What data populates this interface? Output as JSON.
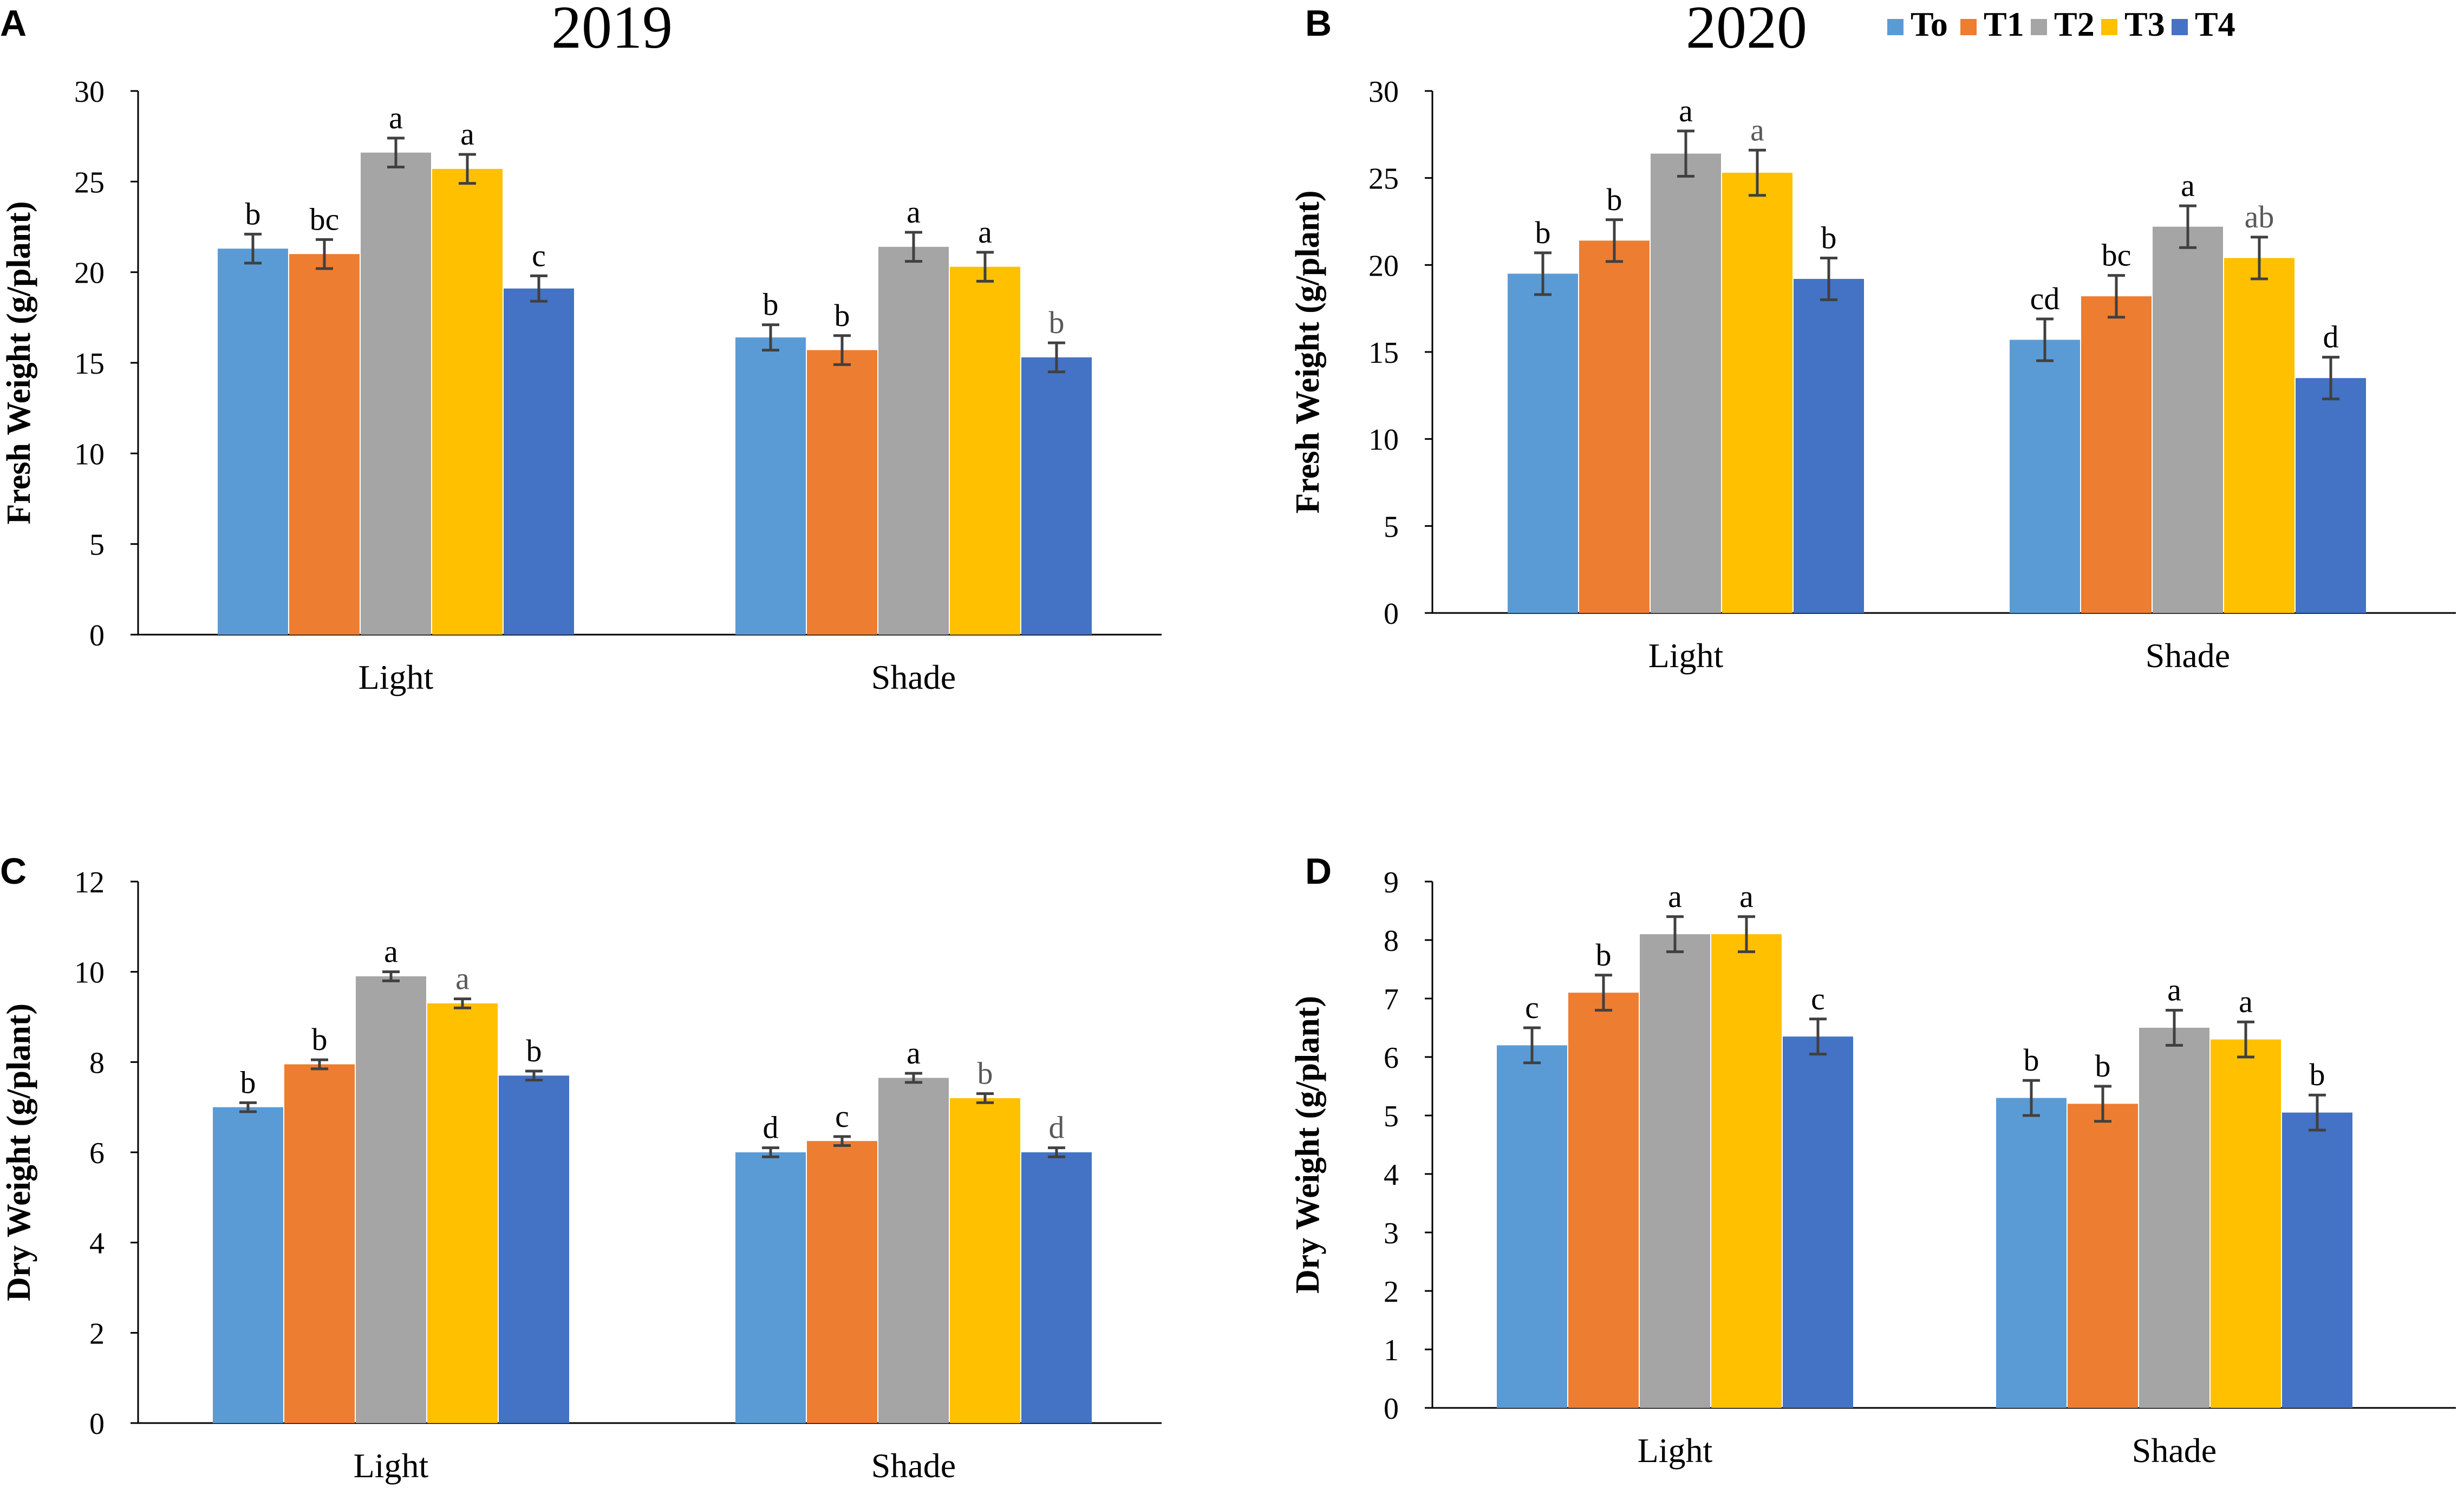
{
  "series_colors": {
    "To": "#5B9BD5",
    "T1": "#ED7D31",
    "T2": "#A5A5A5",
    "T3": "#FFC000",
    "T4": "#4472C4"
  },
  "titles": {
    "left": "2019",
    "right": "2020"
  },
  "legend": {
    "items": [
      {
        "name": "To",
        "color": "#5B9BD5"
      },
      {
        "name": "T1",
        "color": "#ED7D31"
      },
      {
        "name": "T2",
        "color": "#A5A5A5"
      },
      {
        "name": "T3",
        "color": "#FFC000"
      },
      {
        "name": "T4",
        "color": "#4472C4"
      }
    ]
  },
  "chart_data": [
    {
      "panel": "A",
      "type": "bar",
      "title": "2019",
      "categories": [
        "Light",
        "Shade"
      ],
      "ylabel": "Fresh Weight (g/plant)",
      "xlabel": "",
      "ylim": [
        0,
        30
      ],
      "yticks": [
        0,
        5,
        10,
        15,
        20,
        25,
        30
      ],
      "series": [
        {
          "name": "To",
          "values": [
            21.3,
            16.4
          ],
          "errors": [
            0.8,
            0.7
          ],
          "letters": [
            "b",
            "b"
          ]
        },
        {
          "name": "T1",
          "values": [
            21.0,
            15.7
          ],
          "errors": [
            0.8,
            0.8
          ],
          "letters": [
            "bc",
            "b"
          ]
        },
        {
          "name": "T2",
          "values": [
            26.6,
            21.4
          ],
          "errors": [
            0.8,
            0.8
          ],
          "letters": [
            "a",
            "a"
          ]
        },
        {
          "name": "T3",
          "values": [
            25.7,
            20.3
          ],
          "errors": [
            0.8,
            0.8
          ],
          "letters": [
            "a",
            "a"
          ]
        },
        {
          "name": "T4",
          "values": [
            19.1,
            15.3
          ],
          "errors": [
            0.7,
            0.8
          ],
          "letters": [
            "c",
            "b"
          ]
        }
      ]
    },
    {
      "panel": "B",
      "type": "bar",
      "title": "2020",
      "categories": [
        "Light",
        "Shade"
      ],
      "ylabel": "Fresh Weight (g/plant)",
      "xlabel": "",
      "ylim": [
        0,
        30
      ],
      "yticks": [
        0,
        5,
        10,
        15,
        20,
        25,
        30
      ],
      "series": [
        {
          "name": "To",
          "values": [
            19.5,
            15.7
          ],
          "errors": [
            1.2,
            1.2
          ],
          "letters": [
            "b",
            "cd"
          ]
        },
        {
          "name": "T1",
          "values": [
            21.4,
            18.2
          ],
          "errors": [
            1.2,
            1.2
          ],
          "letters": [
            "b",
            "bc"
          ]
        },
        {
          "name": "T2",
          "values": [
            26.4,
            22.2
          ],
          "errors": [
            1.3,
            1.2
          ],
          "letters": [
            "a",
            "a"
          ]
        },
        {
          "name": "T3",
          "values": [
            25.3,
            20.4
          ],
          "errors": [
            1.3,
            1.2
          ],
          "letters": [
            "a",
            "ab"
          ]
        },
        {
          "name": "T4",
          "values": [
            19.2,
            13.5
          ],
          "errors": [
            1.2,
            1.2
          ],
          "letters": [
            "b",
            "d"
          ]
        }
      ]
    },
    {
      "panel": "C",
      "type": "bar",
      "title": "",
      "categories": [
        "Light",
        "Shade"
      ],
      "ylabel": "Dry Weight (g/plant)",
      "xlabel": "",
      "ylim": [
        0,
        12
      ],
      "yticks": [
        0,
        2,
        4,
        6,
        8,
        10,
        12
      ],
      "series": [
        {
          "name": "To",
          "values": [
            7.0,
            6.0
          ],
          "errors": [
            0.1,
            0.1
          ],
          "letters": [
            "b",
            "d"
          ]
        },
        {
          "name": "T1",
          "values": [
            7.95,
            6.25
          ],
          "errors": [
            0.1,
            0.1
          ],
          "letters": [
            "b",
            "c"
          ]
        },
        {
          "name": "T2",
          "values": [
            9.9,
            7.65
          ],
          "errors": [
            0.1,
            0.1
          ],
          "letters": [
            "a",
            "a"
          ]
        },
        {
          "name": "T3",
          "values": [
            9.3,
            7.2
          ],
          "errors": [
            0.1,
            0.1
          ],
          "letters": [
            "a",
            "b"
          ]
        },
        {
          "name": "T4",
          "values": [
            7.7,
            6.0
          ],
          "errors": [
            0.1,
            0.1
          ],
          "letters": [
            "b",
            "d"
          ]
        }
      ]
    },
    {
      "panel": "D",
      "type": "bar",
      "title": "",
      "categories": [
        "Light",
        "Shade"
      ],
      "ylabel": "Dry Weight (g/plant)",
      "xlabel": "",
      "ylim": [
        0,
        9
      ],
      "yticks": [
        0,
        1,
        2,
        3,
        4,
        5,
        6,
        7,
        8,
        9
      ],
      "series": [
        {
          "name": "To",
          "values": [
            6.2,
            5.3
          ],
          "errors": [
            0.3,
            0.3
          ],
          "letters": [
            "c",
            "b"
          ]
        },
        {
          "name": "T1",
          "values": [
            7.1,
            5.2
          ],
          "errors": [
            0.3,
            0.3
          ],
          "letters": [
            "b",
            "b"
          ]
        },
        {
          "name": "T2",
          "values": [
            8.1,
            6.5
          ],
          "errors": [
            0.3,
            0.3
          ],
          "letters": [
            "a",
            "a"
          ]
        },
        {
          "name": "T3",
          "values": [
            8.1,
            6.3
          ],
          "errors": [
            0.3,
            0.3
          ],
          "letters": [
            "a",
            "a"
          ]
        },
        {
          "name": "T4",
          "values": [
            6.35,
            5.05
          ],
          "errors": [
            0.3,
            0.3
          ],
          "letters": [
            "c",
            "b"
          ]
        }
      ]
    }
  ]
}
